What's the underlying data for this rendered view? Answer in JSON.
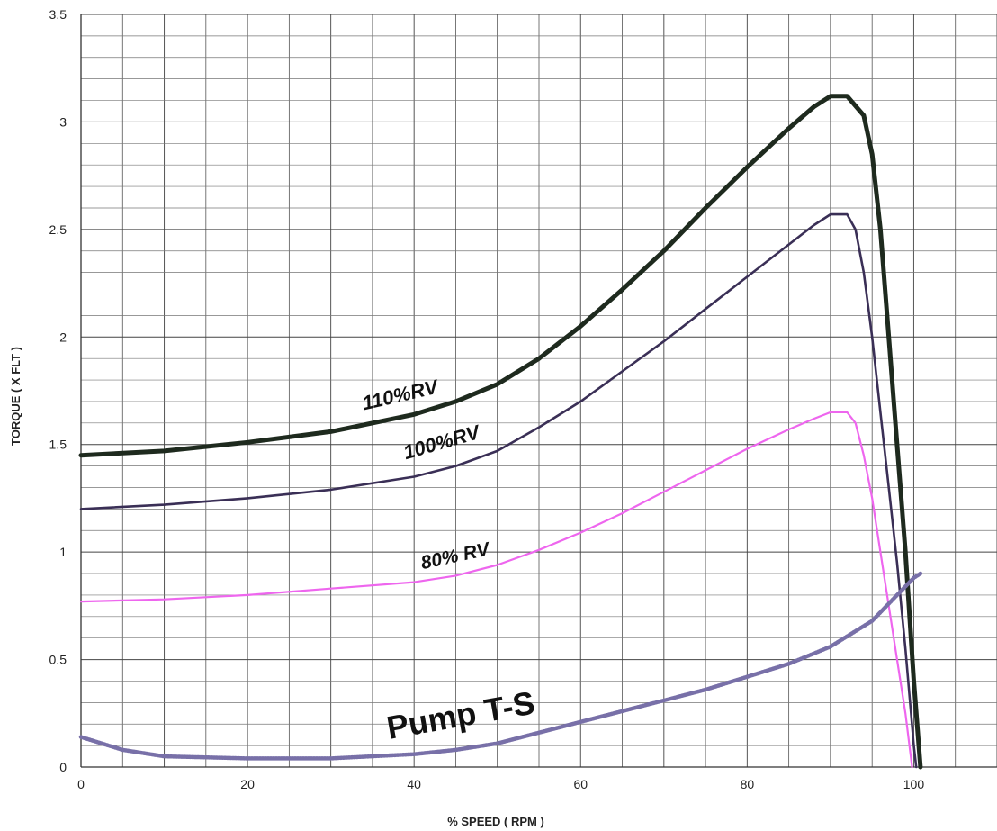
{
  "chart_data": {
    "type": "line",
    "xlabel": "% SPEED ( RPM )",
    "ylabel": "TORQUE ( X FLT )",
    "xlim": [
      0,
      110
    ],
    "ylim": [
      0,
      3.5
    ],
    "x_ticks": [
      "0",
      "20",
      "40",
      "60",
      "80",
      "100"
    ],
    "y_ticks": [
      "0",
      "0.5",
      "1",
      "1.5",
      "2",
      "2.5",
      "3",
      "3.5"
    ],
    "grid": true,
    "series": [
      {
        "name": "110%RV",
        "color": "#1e2a1e",
        "points": [
          [
            0,
            1.45
          ],
          [
            10,
            1.47
          ],
          [
            20,
            1.51
          ],
          [
            30,
            1.56
          ],
          [
            40,
            1.64
          ],
          [
            45,
            1.7
          ],
          [
            50,
            1.78
          ],
          [
            55,
            1.9
          ],
          [
            60,
            2.05
          ],
          [
            65,
            2.22
          ],
          [
            70,
            2.4
          ],
          [
            75,
            2.6
          ],
          [
            80,
            2.79
          ],
          [
            85,
            2.97
          ],
          [
            88,
            3.07
          ],
          [
            90,
            3.12
          ],
          [
            92,
            3.12
          ],
          [
            94,
            3.03
          ],
          [
            95,
            2.85
          ],
          [
            96,
            2.5
          ],
          [
            97,
            2.0
          ],
          [
            98,
            1.5
          ],
          [
            99,
            1.0
          ],
          [
            100,
            0.4
          ],
          [
            100.8,
            0.0
          ]
        ]
      },
      {
        "name": "100%RV",
        "color": "#3a2f56",
        "points": [
          [
            0,
            1.2
          ],
          [
            10,
            1.22
          ],
          [
            20,
            1.25
          ],
          [
            30,
            1.29
          ],
          [
            40,
            1.35
          ],
          [
            45,
            1.4
          ],
          [
            50,
            1.47
          ],
          [
            55,
            1.58
          ],
          [
            60,
            1.7
          ],
          [
            65,
            1.84
          ],
          [
            70,
            1.98
          ],
          [
            75,
            2.13
          ],
          [
            80,
            2.28
          ],
          [
            85,
            2.43
          ],
          [
            88,
            2.52
          ],
          [
            90,
            2.57
          ],
          [
            92,
            2.57
          ],
          [
            93,
            2.5
          ],
          [
            94,
            2.3
          ],
          [
            95,
            2.0
          ],
          [
            96,
            1.65
          ],
          [
            97,
            1.3
          ],
          [
            98,
            0.95
          ],
          [
            99,
            0.55
          ],
          [
            100,
            0.1
          ],
          [
            100.3,
            0.0
          ]
        ]
      },
      {
        "name": "80% RV",
        "color": "#ee66ee",
        "points": [
          [
            0,
            0.77
          ],
          [
            10,
            0.78
          ],
          [
            20,
            0.8
          ],
          [
            30,
            0.83
          ],
          [
            40,
            0.86
          ],
          [
            45,
            0.89
          ],
          [
            50,
            0.94
          ],
          [
            55,
            1.01
          ],
          [
            60,
            1.09
          ],
          [
            65,
            1.18
          ],
          [
            70,
            1.28
          ],
          [
            75,
            1.38
          ],
          [
            80,
            1.48
          ],
          [
            85,
            1.57
          ],
          [
            88,
            1.62
          ],
          [
            90,
            1.65
          ],
          [
            92,
            1.65
          ],
          [
            93,
            1.6
          ],
          [
            94,
            1.45
          ],
          [
            95,
            1.25
          ],
          [
            96,
            1.0
          ],
          [
            97,
            0.75
          ],
          [
            98,
            0.5
          ],
          [
            99,
            0.25
          ],
          [
            99.8,
            0.0
          ]
        ]
      },
      {
        "name": "Pump T-S",
        "color": "#7870a8",
        "points": [
          [
            0,
            0.14
          ],
          [
            5,
            0.08
          ],
          [
            10,
            0.05
          ],
          [
            20,
            0.04
          ],
          [
            30,
            0.04
          ],
          [
            40,
            0.06
          ],
          [
            45,
            0.08
          ],
          [
            50,
            0.11
          ],
          [
            55,
            0.16
          ],
          [
            60,
            0.21
          ],
          [
            65,
            0.26
          ],
          [
            70,
            0.31
          ],
          [
            75,
            0.36
          ],
          [
            80,
            0.42
          ],
          [
            85,
            0.48
          ],
          [
            90,
            0.56
          ],
          [
            95,
            0.68
          ],
          [
            98,
            0.8
          ],
          [
            100,
            0.88
          ],
          [
            100.8,
            0.9
          ]
        ]
      }
    ]
  }
}
